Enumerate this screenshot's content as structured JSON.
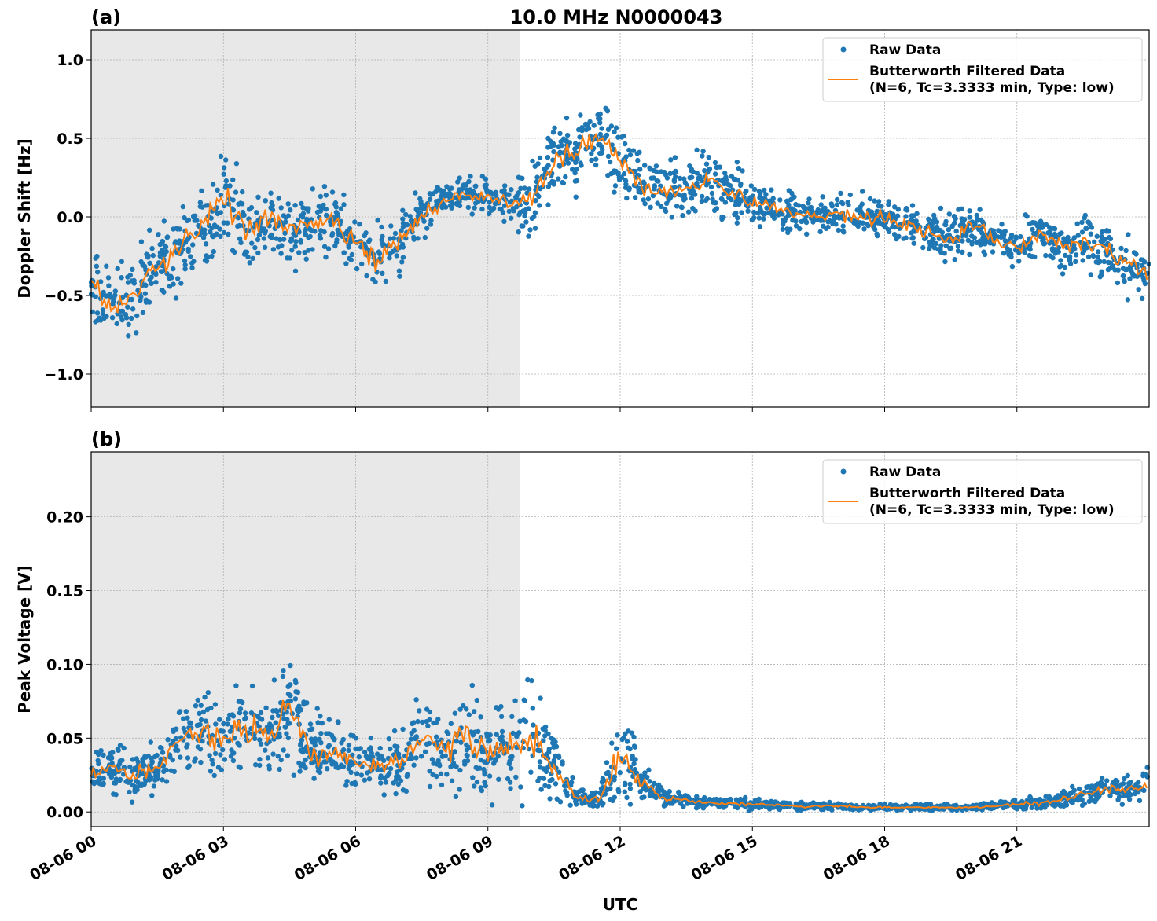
{
  "title": "10.0 MHz N0000043",
  "xlabel": "UTC",
  "x_ticks": [
    "08-06 00",
    "08-06 03",
    "08-06 06",
    "08-06 09",
    "08-06 12",
    "08-06 15",
    "08-06 18",
    "08-06 21"
  ],
  "x_tick_hours": [
    0,
    3,
    6,
    9,
    12,
    15,
    18,
    21
  ],
  "x_range_hours": [
    0,
    24
  ],
  "shaded_region_hours": [
    0,
    9.72
  ],
  "legend": {
    "raw": "Raw Data",
    "filtered_1": "Butterworth Filtered Data",
    "filtered_2": "(N=6, Tc=3.3333 min, Type: low)",
    "placement": "upper right"
  },
  "colors": {
    "raw": "#1f77b4",
    "filtered": "#ff7f0e",
    "shade": "#e8e8e8",
    "grid": "#b0b0b0"
  },
  "chart_data": [
    {
      "type": "scatter",
      "panel_label": "(a)",
      "ylabel": "Doppler Shift [Hz]",
      "ylim": [
        -1.21,
        1.19
      ],
      "y_ticks": [
        -1.0,
        -0.5,
        0.0,
        0.5,
        1.0
      ],
      "y_tick_labels": [
        "−1.0",
        "−0.5",
        "0.0",
        "0.5",
        "1.0"
      ],
      "grid": true,
      "hours": [
        0,
        0.5,
        1,
        1.5,
        2,
        2.5,
        3,
        3.5,
        4,
        4.5,
        5,
        5.5,
        6,
        6.5,
        7,
        7.5,
        8,
        8.5,
        9,
        9.5,
        10,
        10.5,
        11,
        11.5,
        12,
        12.5,
        13,
        13.5,
        14,
        14.5,
        15,
        15.5,
        16,
        16.5,
        17,
        17.5,
        18,
        18.5,
        19,
        19.5,
        20,
        20.5,
        21,
        21.5,
        22,
        22.5,
        23,
        23.5,
        24
      ],
      "filtered": [
        -0.4,
        -0.6,
        -0.5,
        -0.3,
        -0.2,
        -0.05,
        0.15,
        -0.1,
        0.0,
        -0.1,
        -0.05,
        -0.05,
        -0.15,
        -0.3,
        -0.15,
        0.0,
        0.1,
        0.15,
        0.12,
        0.1,
        0.1,
        0.35,
        0.4,
        0.55,
        0.35,
        0.2,
        0.15,
        0.2,
        0.25,
        0.15,
        0.1,
        0.05,
        0.03,
        0.0,
        0.02,
        0.0,
        0.0,
        -0.05,
        -0.1,
        -0.15,
        -0.05,
        -0.15,
        -0.2,
        -0.1,
        -0.2,
        -0.15,
        -0.2,
        -0.3,
        -0.35
      ],
      "raw_spread": [
        0.3,
        0.35,
        0.35,
        0.35,
        0.35,
        0.4,
        0.45,
        0.35,
        0.35,
        0.3,
        0.3,
        0.3,
        0.35,
        0.4,
        0.3,
        0.2,
        0.15,
        0.15,
        0.15,
        0.2,
        0.3,
        0.35,
        0.35,
        0.3,
        0.3,
        0.25,
        0.25,
        0.25,
        0.3,
        0.25,
        0.2,
        0.2,
        0.15,
        0.15,
        0.2,
        0.2,
        0.15,
        0.2,
        0.2,
        0.25,
        0.2,
        0.2,
        0.2,
        0.2,
        0.2,
        0.2,
        0.25,
        0.25,
        0.25
      ]
    },
    {
      "type": "scatter",
      "panel_label": "(b)",
      "ylabel": "Peak Voltage [V]",
      "ylim": [
        -0.01,
        0.244
      ],
      "y_ticks": [
        0.0,
        0.05,
        0.1,
        0.15,
        0.2
      ],
      "y_tick_labels": [
        "0.00",
        "0.05",
        "0.10",
        "0.15",
        "0.20"
      ],
      "grid": true,
      "hours": [
        0,
        0.5,
        1,
        1.5,
        2,
        2.5,
        3,
        3.5,
        4,
        4.5,
        5,
        5.5,
        6,
        6.5,
        7,
        7.5,
        8,
        8.5,
        9,
        9.5,
        10,
        10.5,
        11,
        11.5,
        12,
        12.5,
        13,
        13.5,
        14,
        14.5,
        15,
        15.5,
        16,
        16.5,
        17,
        17.5,
        18,
        18.5,
        19,
        19.5,
        20,
        20.5,
        21,
        21.5,
        22,
        22.5,
        23,
        23.5,
        24
      ],
      "filtered": [
        0.025,
        0.03,
        0.025,
        0.03,
        0.05,
        0.055,
        0.045,
        0.06,
        0.05,
        0.07,
        0.04,
        0.04,
        0.035,
        0.03,
        0.035,
        0.05,
        0.04,
        0.05,
        0.04,
        0.045,
        0.05,
        0.03,
        0.01,
        0.008,
        0.04,
        0.02,
        0.01,
        0.008,
        0.006,
        0.006,
        0.005,
        0.005,
        0.004,
        0.004,
        0.004,
        0.003,
        0.003,
        0.003,
        0.003,
        0.003,
        0.003,
        0.004,
        0.005,
        0.006,
        0.008,
        0.012,
        0.015,
        0.015,
        0.018
      ],
      "raw_spread": [
        0.02,
        0.025,
        0.02,
        0.025,
        0.03,
        0.035,
        0.04,
        0.045,
        0.04,
        0.055,
        0.04,
        0.03,
        0.025,
        0.025,
        0.03,
        0.045,
        0.035,
        0.05,
        0.04,
        0.04,
        0.06,
        0.03,
        0.01,
        0.008,
        0.05,
        0.02,
        0.008,
        0.006,
        0.005,
        0.005,
        0.005,
        0.004,
        0.004,
        0.004,
        0.004,
        0.003,
        0.003,
        0.003,
        0.003,
        0.003,
        0.003,
        0.004,
        0.005,
        0.006,
        0.008,
        0.01,
        0.012,
        0.012,
        0.015
      ]
    }
  ]
}
